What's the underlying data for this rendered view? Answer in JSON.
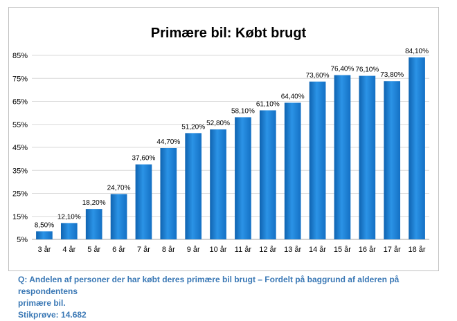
{
  "chart_data": {
    "type": "bar",
    "title": "Primære bil: Købt brugt",
    "xlabel": "",
    "ylabel": "",
    "categories": [
      "3 år",
      "4 år",
      "5 år",
      "6 år",
      "7 år",
      "8 år",
      "9 år",
      "10 år",
      "11 år",
      "12 år",
      "13 år",
      "14 år",
      "15 år",
      "16 år",
      "17 år",
      "18 år"
    ],
    "values": [
      8.5,
      12.1,
      18.2,
      24.7,
      37.6,
      44.7,
      51.2,
      52.8,
      58.1,
      61.1,
      64.4,
      73.6,
      76.4,
      76.1,
      73.8,
      84.1
    ],
    "value_labels": [
      "8,50%",
      "12,10%",
      "18,20%",
      "24,70%",
      "37,60%",
      "44,70%",
      "51,20%",
      "52,80%",
      "58,10%",
      "61,10%",
      "64,40%",
      "73,60%",
      "76,40%",
      "76,10%",
      "73,80%",
      "84,10%"
    ],
    "ylim": [
      5,
      85
    ],
    "y_ticks": [
      5,
      15,
      25,
      35,
      45,
      55,
      65,
      75,
      85
    ],
    "y_tick_labels": [
      "5%",
      "15%",
      "25%",
      "35%",
      "45%",
      "55%",
      "65%",
      "75%",
      "85%"
    ],
    "grid": true,
    "legend": "none",
    "bar_color": "#1f82d6"
  },
  "caption": {
    "line1": "Q: Andelen af personer der har købt deres primære bil brugt – Fordelt på baggrund af alderen på respondentens",
    "line2": "primære bil.",
    "sample": "Stikprøve: 14.682"
  }
}
